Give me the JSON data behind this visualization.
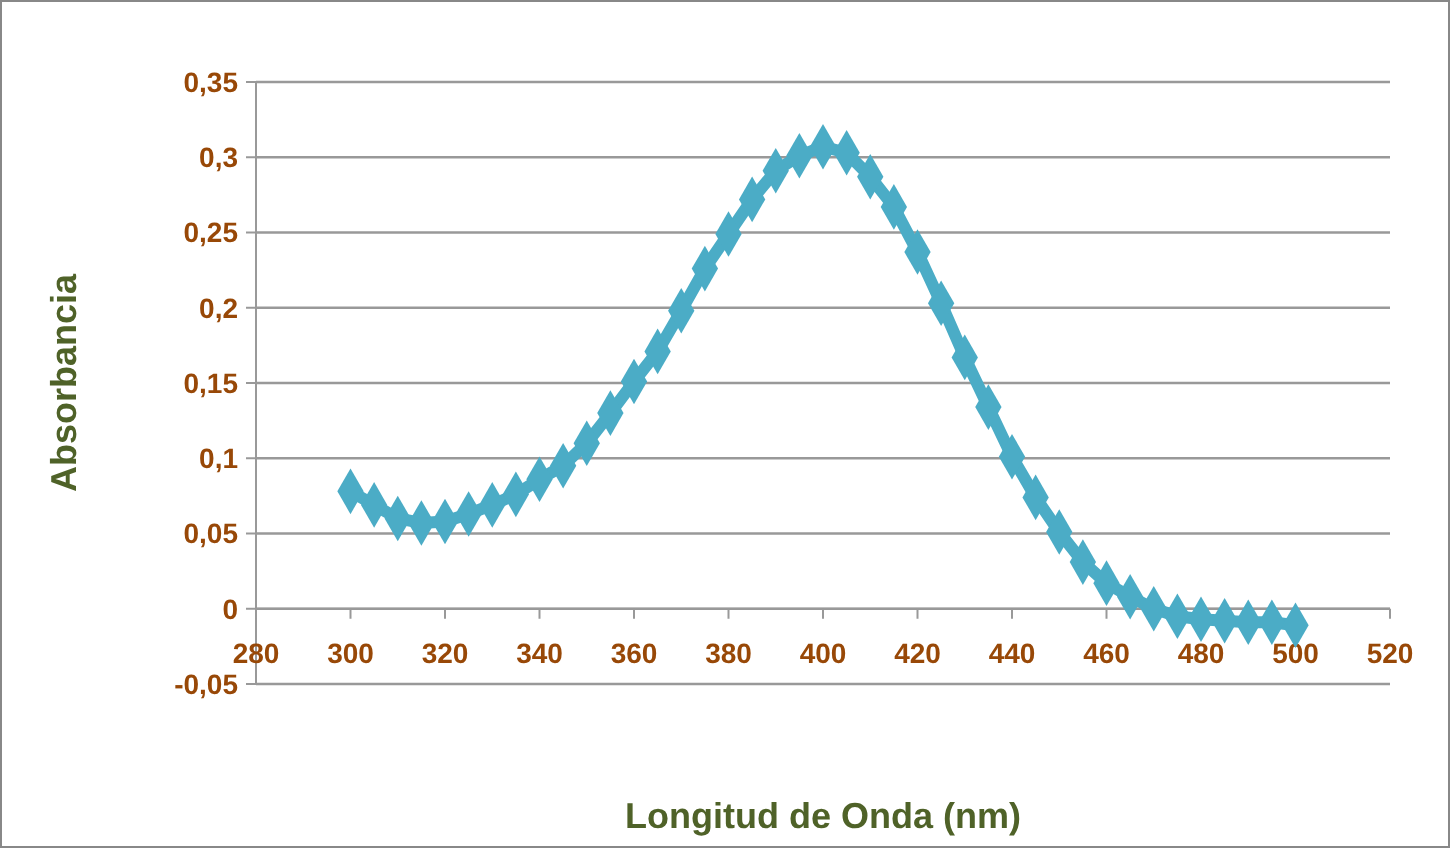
{
  "chart_data": {
    "type": "line",
    "xlabel": "Longitud de Onda (nm)",
    "ylabel": "Absorbancia",
    "x": [
      300,
      305,
      310,
      315,
      320,
      325,
      330,
      335,
      340,
      345,
      350,
      355,
      360,
      365,
      370,
      375,
      380,
      385,
      390,
      395,
      400,
      405,
      410,
      415,
      420,
      425,
      430,
      435,
      440,
      445,
      450,
      455,
      460,
      465,
      470,
      475,
      480,
      485,
      490,
      495,
      500
    ],
    "series": [
      {
        "color": "#4bacc6",
        "values": [
          0.078,
          0.069,
          0.06,
          0.057,
          0.058,
          0.063,
          0.069,
          0.076,
          0.086,
          0.095,
          0.11,
          0.13,
          0.151,
          0.171,
          0.198,
          0.226,
          0.249,
          0.272,
          0.291,
          0.301,
          0.307,
          0.303,
          0.287,
          0.267,
          0.237,
          0.203,
          0.167,
          0.134,
          0.101,
          0.074,
          0.051,
          0.031,
          0.017,
          0.008,
          0.0,
          -0.005,
          -0.007,
          -0.008,
          -0.009,
          -0.009,
          -0.011
        ]
      }
    ],
    "xlim": [
      280,
      520
    ],
    "xticks": [
      280,
      300,
      320,
      340,
      360,
      380,
      400,
      420,
      440,
      460,
      480,
      500,
      520
    ],
    "ylim": [
      -0.05,
      0.35
    ],
    "yticks": [
      {
        "value": -0.05,
        "label": "-0,05"
      },
      0,
      {
        "value": 0.05,
        "label": "0,05"
      },
      {
        "value": 0.1,
        "label": "0,1"
      },
      {
        "value": 0.15,
        "label": "0,15"
      },
      {
        "value": 0.2,
        "label": "0,2"
      },
      {
        "value": 0.25,
        "label": "0,25"
      },
      {
        "value": 0.3,
        "label": "0,3"
      },
      {
        "value": 0.35,
        "label": "0,35"
      }
    ],
    "grid": "y",
    "marker": "diamond",
    "line_style": "solid"
  }
}
